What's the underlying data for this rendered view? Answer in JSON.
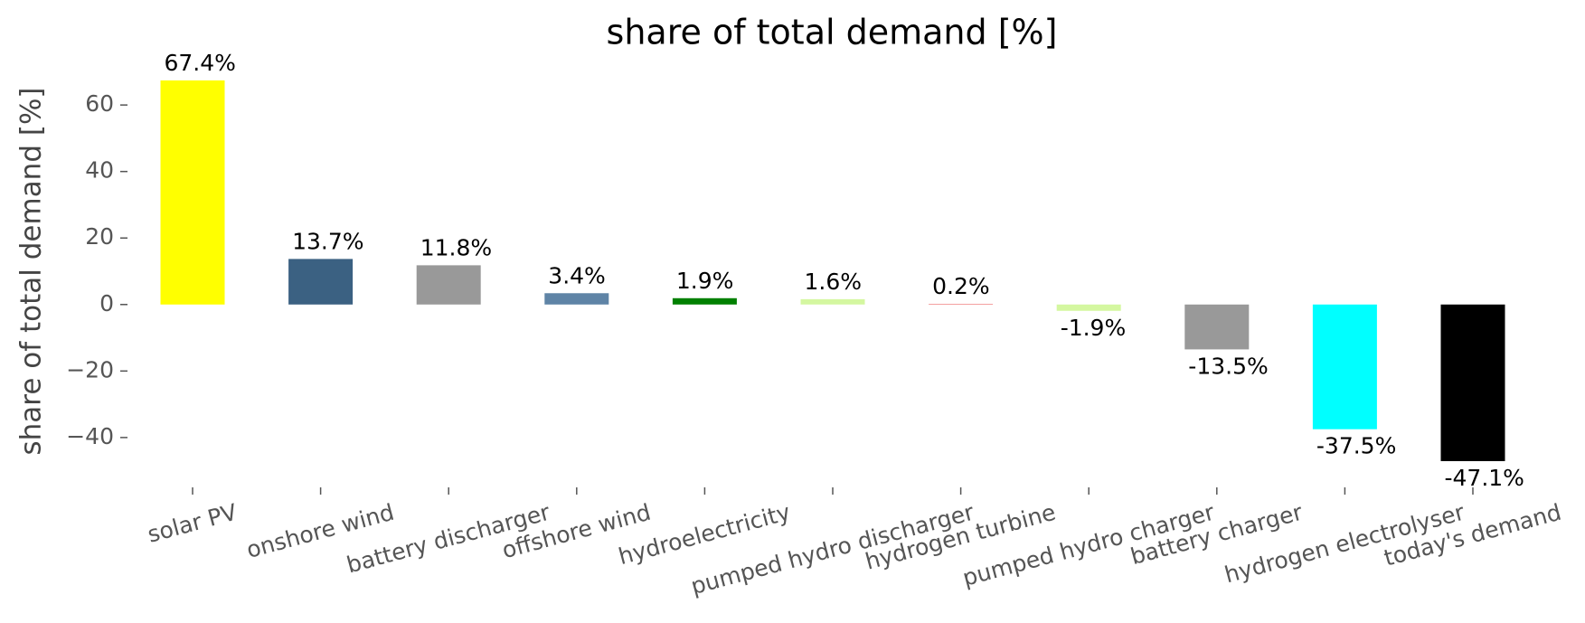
{
  "chart_data": {
    "type": "bar",
    "title": "share of total demand [%]",
    "ylabel": "share of total demand [%]",
    "categories": [
      "solar PV",
      "onshore wind",
      "battery discharger",
      "offshore wind",
      "hydroelectricity",
      "pumped hydro discharger",
      "hydrogen turbine",
      "pumped hydro charger",
      "battery charger",
      "hydrogen electrolyser",
      "today's demand"
    ],
    "values": [
      67.4,
      13.7,
      11.8,
      3.4,
      1.9,
      1.6,
      0.2,
      -1.9,
      -13.5,
      -37.5,
      -47.1
    ],
    "value_labels": [
      "67.4%",
      "13.7%",
      "11.8%",
      "3.4%",
      "1.9%",
      "1.6%",
      "0.2%",
      "-1.9%",
      "-13.5%",
      "-37.5%",
      "-47.1%"
    ],
    "colors": [
      "#ffff00",
      "#3b6182",
      "#999999",
      "#5f84a6",
      "#008000",
      "#d4f7a0",
      "#f08080",
      "#d4f7a0",
      "#999999",
      "#00ffff",
      "#000000"
    ],
    "ylim": [
      -52,
      72
    ],
    "yticks": [
      {
        "value": -40,
        "label": "−40"
      },
      {
        "value": -20,
        "label": "−20"
      },
      0,
      20,
      40,
      60
    ],
    "grid": false
  }
}
